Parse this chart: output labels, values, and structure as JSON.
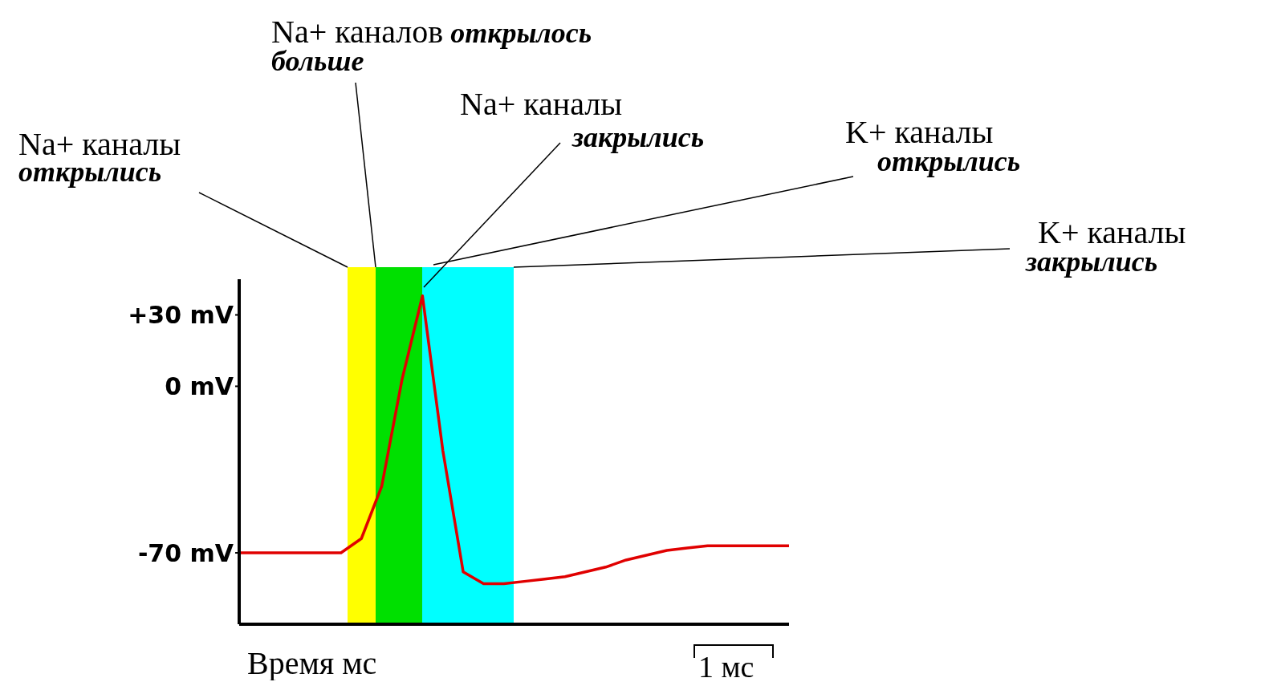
{
  "chart_data": {
    "type": "line",
    "xlabel": "Время мс",
    "categories": [
      null,
      null,
      null,
      null,
      null,
      null,
      null,
      null,
      null,
      null,
      null,
      null,
      null,
      null,
      null,
      null,
      null,
      null,
      null,
      null,
      null,
      null,
      null,
      null,
      null,
      null,
      null,
      null
    ],
    "series": [
      {
        "color": "#e00000",
        "values": [
          -70,
          -70,
          -70,
          -70,
          -70,
          -70,
          -64,
          -42,
          3,
          38,
          -27,
          -78,
          -83,
          -83,
          -82,
          -81,
          -80,
          -78,
          -76,
          -73,
          -71,
          -69,
          -68,
          -67,
          -67,
          -67,
          -67,
          -67
        ]
      }
    ],
    "ylim": [
      -100,
      45
    ],
    "yticks": [
      {
        "value": 30,
        "label": "+30 mV"
      },
      {
        "value": 0,
        "label": "0 mV"
      },
      {
        "value": -70,
        "label": "-70 mV"
      }
    ],
    "tick_labels": "y",
    "grid": false,
    "legend": false,
    "marker": "none",
    "line_style": "solid",
    "annotations": [
      "Na+ каналы открылись",
      "Na+ каналов открылось больше",
      "Na+ каналы закрылись",
      "K+ каналы открылись",
      "K+ каналы закрылись",
      "1 мс"
    ]
  }
}
